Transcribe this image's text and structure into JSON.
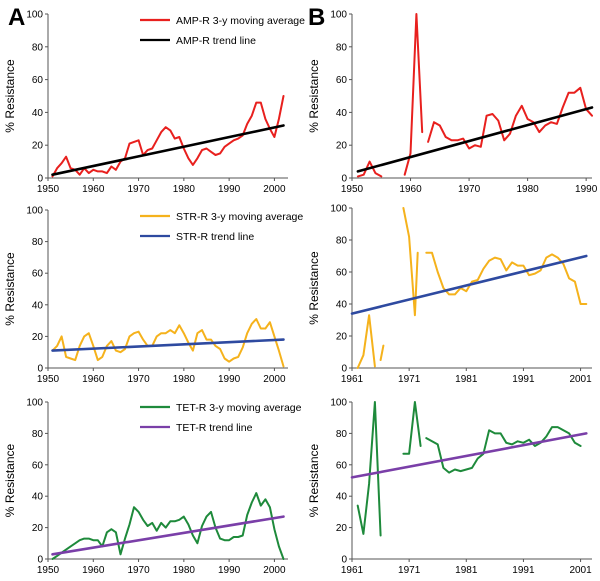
{
  "panel_labels": [
    "A",
    "B"
  ],
  "chart_data": [
    {
      "type": "line",
      "panel": "A",
      "ylabel": "% Resistance",
      "xlim": [
        1950,
        2003
      ],
      "ylim": [
        0,
        100
      ],
      "xticks": [
        1950,
        1960,
        1970,
        1980,
        1990,
        2000
      ],
      "yticks": [
        0,
        20,
        40,
        60,
        80,
        100
      ],
      "legend_position": "top",
      "series": [
        {
          "name": "AMP-R 3-y moving average",
          "kind": "data",
          "color": "#e8201e",
          "x": [
            1951,
            1952,
            1953,
            1954,
            1955,
            1956,
            1957,
            1958,
            1959,
            1960,
            1961,
            1962,
            1963,
            1964,
            1965,
            1966,
            1967,
            1968,
            1969,
            1970,
            1971,
            1972,
            1973,
            1974,
            1975,
            1976,
            1977,
            1978,
            1979,
            1980,
            1981,
            1982,
            1983,
            1984,
            1985,
            1986,
            1987,
            1988,
            1989,
            1990,
            1991,
            1992,
            1993,
            1994,
            1995,
            1996,
            1997,
            1998,
            1999,
            2000,
            2001,
            2002
          ],
          "y": [
            1,
            6,
            9,
            13,
            6,
            5,
            2,
            6,
            3,
            5,
            4,
            4,
            3,
            7,
            5,
            10,
            12,
            21,
            22,
            23,
            14,
            17,
            18,
            23,
            28,
            31,
            29,
            24,
            25,
            18,
            12,
            8,
            12,
            17,
            18,
            16,
            14,
            15,
            19,
            21,
            23,
            24,
            26,
            33,
            38,
            46,
            46,
            36,
            30,
            25,
            36,
            50
          ]
        },
        {
          "name": "AMP-R trend line",
          "kind": "trend",
          "color": "#000000",
          "x": [
            1951,
            2002
          ],
          "y": [
            2,
            32
          ]
        }
      ]
    },
    {
      "type": "line",
      "panel": "A",
      "ylabel": "% Resistance",
      "xlim": [
        1950,
        2003
      ],
      "ylim": [
        0,
        100
      ],
      "xticks": [
        1950,
        1960,
        1970,
        1980,
        1990,
        2000
      ],
      "yticks": [
        0,
        20,
        40,
        60,
        80,
        100
      ],
      "legend_position": "top",
      "series": [
        {
          "name": "STR-R 3-y moving average",
          "kind": "data",
          "color": "#f5b21c",
          "x": [
            1951,
            1952,
            1953,
            1954,
            1955,
            1956,
            1957,
            1958,
            1959,
            1960,
            1961,
            1962,
            1963,
            1964,
            1965,
            1966,
            1967,
            1968,
            1969,
            1970,
            1971,
            1972,
            1973,
            1974,
            1975,
            1976,
            1977,
            1978,
            1979,
            1980,
            1981,
            1982,
            1983,
            1984,
            1985,
            1986,
            1987,
            1988,
            1989,
            1990,
            1991,
            1992,
            1993,
            1994,
            1995,
            1996,
            1997,
            1998,
            1999,
            2000,
            2001,
            2002
          ],
          "y": [
            11,
            14,
            20,
            7,
            6,
            5,
            14,
            20,
            22,
            14,
            5,
            7,
            14,
            17,
            11,
            10,
            12,
            20,
            22,
            23,
            18,
            14,
            14,
            20,
            22,
            22,
            24,
            22,
            27,
            22,
            16,
            11,
            22,
            24,
            18,
            18,
            14,
            12,
            6,
            4,
            6,
            7,
            13,
            22,
            28,
            31,
            25,
            25,
            29,
            20,
            11,
            1
          ]
        },
        {
          "name": "STR-R trend line",
          "kind": "trend",
          "color": "#2e4aa0",
          "x": [
            1951,
            2002
          ],
          "y": [
            11,
            18
          ]
        }
      ]
    },
    {
      "type": "line",
      "panel": "A",
      "ylabel": "% Resistance",
      "xlim": [
        1950,
        2003
      ],
      "ylim": [
        0,
        100
      ],
      "xticks": [
        1950,
        1960,
        1970,
        1980,
        1990,
        2000
      ],
      "yticks": [
        0,
        20,
        40,
        60,
        80,
        100
      ],
      "legend_position": "top",
      "series": [
        {
          "name": "TET-R 3-y moving average",
          "kind": "data",
          "color": "#1e8a3b",
          "x": [
            1951,
            1952,
            1953,
            1954,
            1955,
            1956,
            1957,
            1958,
            1959,
            1960,
            1961,
            1962,
            1963,
            1964,
            1965,
            1966,
            1967,
            1968,
            1969,
            1970,
            1971,
            1972,
            1973,
            1974,
            1975,
            1976,
            1977,
            1978,
            1979,
            1980,
            1981,
            1982,
            1983,
            1984,
            1985,
            1986,
            1987,
            1988,
            1989,
            1990,
            1991,
            1992,
            1993,
            1994,
            1995,
            1996,
            1997,
            1998,
            1999,
            2000,
            2001,
            2002
          ],
          "y": [
            0,
            2,
            4,
            6,
            8,
            10,
            12,
            13,
            13,
            12,
            12,
            8,
            17,
            19,
            17,
            3,
            13,
            22,
            33,
            30,
            25,
            21,
            23,
            18,
            23,
            20,
            24,
            24,
            25,
            27,
            22,
            15,
            10,
            21,
            27,
            30,
            20,
            13,
            12,
            12,
            14,
            14,
            15,
            28,
            36,
            42,
            34,
            38,
            33,
            19,
            8,
            0
          ]
        },
        {
          "name": "TET-R trend line",
          "kind": "trend",
          "color": "#7a3fa8",
          "x": [
            1951,
            2002
          ],
          "y": [
            3,
            27
          ]
        }
      ]
    },
    {
      "type": "line",
      "panel": "B",
      "ylabel": "% Resistance",
      "xlim": [
        1950,
        1991
      ],
      "ylim": [
        0,
        100
      ],
      "xticks": [
        1950,
        1960,
        1970,
        1980,
        1990
      ],
      "yticks": [
        0,
        20,
        40,
        60,
        80,
        100
      ],
      "series": [
        {
          "name": "AMP-R 3-y moving average",
          "kind": "data",
          "color": "#e8201e",
          "segments": [
            {
              "x": [
                1951,
                1952,
                1953,
                1954,
                1955
              ],
              "y": [
                1,
                2,
                10,
                3,
                1
              ]
            },
            {
              "x": [
                1959,
                1960,
                1961,
                1962
              ],
              "y": [
                2,
                15,
                100,
                28
              ]
            },
            {
              "x": [
                1963,
                1964,
                1965,
                1966,
                1967,
                1968,
                1969,
                1970,
                1971,
                1972,
                1973,
                1974,
                1975,
                1976,
                1977,
                1978,
                1979,
                1980,
                1981,
                1982,
                1983,
                1984,
                1985,
                1986,
                1987,
                1988,
                1989,
                1990,
                1991
              ],
              "y": [
                22,
                34,
                32,
                25,
                23,
                23,
                24,
                18,
                20,
                19,
                38,
                39,
                35,
                23,
                27,
                38,
                44,
                36,
                34,
                28,
                32,
                34,
                33,
                43,
                52,
                52,
                55,
                42,
                38
              ]
            }
          ]
        },
        {
          "name": "AMP-R trend line",
          "kind": "trend",
          "color": "#000000",
          "x": [
            1951,
            1991
          ],
          "y": [
            4,
            43
          ]
        }
      ]
    },
    {
      "type": "line",
      "panel": "B",
      "ylabel": "% Resistance",
      "xlim": [
        1961,
        2003
      ],
      "ylim": [
        0,
        100
      ],
      "xticks": [
        1961,
        1971,
        1981,
        1991,
        2001
      ],
      "yticks": [
        0,
        20,
        40,
        60,
        80,
        100
      ],
      "series": [
        {
          "name": "STR-R 3-y moving average",
          "kind": "data",
          "color": "#f5b21c",
          "segments": [
            {
              "x": [
                1962,
                1963,
                1964,
                1965
              ],
              "y": [
                0,
                8,
                33,
                1
              ]
            },
            {
              "x": [
                1966,
                1966.5
              ],
              "y": [
                5,
                14
              ]
            },
            {
              "x": [
                1970,
                1971,
                1972,
                1972.5
              ],
              "y": [
                100,
                82,
                33,
                72
              ]
            },
            {
              "x": [
                1974,
                1975,
                1976,
                1977,
                1978,
                1979,
                1980,
                1981,
                1982,
                1983,
                1984,
                1985,
                1986,
                1987,
                1988,
                1989,
                1990,
                1991,
                1992,
                1993,
                1994,
                1995,
                1996,
                1997,
                1998,
                1999,
                2000,
                2001,
                2002
              ],
              "y": [
                72,
                72,
                60,
                50,
                46,
                46,
                50,
                48,
                54,
                55,
                62,
                67,
                69,
                68,
                61,
                66,
                64,
                64,
                58,
                59,
                61,
                69,
                71,
                69,
                65,
                56,
                54,
                40,
                40
              ]
            }
          ]
        },
        {
          "name": "STR-R trend line",
          "kind": "trend",
          "color": "#2e4aa0",
          "x": [
            1961,
            2002
          ],
          "y": [
            34,
            70
          ]
        }
      ]
    },
    {
      "type": "line",
      "panel": "B",
      "ylabel": "% Resistance",
      "xlim": [
        1961,
        2003
      ],
      "ylim": [
        0,
        100
      ],
      "xticks": [
        1961,
        1971,
        1981,
        1991,
        2001
      ],
      "yticks": [
        0,
        20,
        40,
        60,
        80,
        100
      ],
      "series": [
        {
          "name": "TET-R 3-y moving average",
          "kind": "data",
          "color": "#1e8a3b",
          "segments": [
            {
              "x": [
                1962,
                1963,
                1964,
                1965,
                1966
              ],
              "y": [
                34,
                16,
                48,
                100,
                15
              ]
            },
            {
              "x": [
                1970,
                1971,
                1972,
                1973
              ],
              "y": [
                67,
                67,
                100,
                72
              ]
            },
            {
              "x": [
                1974,
                1975,
                1976,
                1977,
                1978,
                1979,
                1980,
                1981,
                1982,
                1983,
                1984,
                1985,
                1986,
                1987,
                1988,
                1989,
                1990,
                1991,
                1992,
                1993,
                1994,
                1995,
                1996,
                1997,
                1998,
                1999,
                2000,
                2001
              ],
              "y": [
                77,
                75,
                73,
                58,
                55,
                57,
                56,
                57,
                58,
                64,
                67,
                82,
                80,
                80,
                74,
                73,
                75,
                74,
                76,
                72,
                74,
                78,
                84,
                84,
                82,
                80,
                74,
                72
              ]
            }
          ]
        },
        {
          "name": "TET-R trend line",
          "kind": "trend",
          "color": "#7a3fa8",
          "x": [
            1961,
            2002
          ],
          "y": [
            52,
            80
          ]
        }
      ]
    }
  ]
}
